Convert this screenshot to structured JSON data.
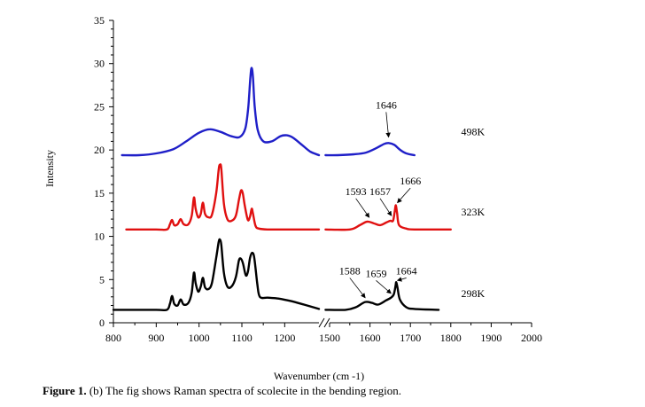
{
  "chart_data": {
    "type": "line",
    "title": "",
    "xlabel": "Wavenumber (cm -1)",
    "ylabel": "Intensity",
    "ylim": [
      0,
      35
    ],
    "yticks": [
      0,
      5,
      10,
      15,
      20,
      25,
      30,
      35
    ],
    "x_segments": [
      {
        "range": [
          800,
          1280
        ],
        "ticks": [
          800,
          900,
          1000,
          1100,
          1200
        ]
      },
      {
        "range": [
          1500,
          2000
        ],
        "ticks": [
          1500,
          1600,
          1700,
          1800,
          1900,
          2000
        ]
      }
    ],
    "axis_break": true,
    "series": [
      {
        "name": "498K",
        "color": "#1f1fc8",
        "segments": [
          [
            [
              820,
              19.4
            ],
            [
              860,
              19.4
            ],
            [
              900,
              19.6
            ],
            [
              940,
              20.1
            ],
            [
              970,
              21.0
            ],
            [
              1000,
              22.0
            ],
            [
              1025,
              22.4
            ],
            [
              1050,
              22.1
            ],
            [
              1075,
              21.6
            ],
            [
              1095,
              21.5
            ],
            [
              1108,
              22.5
            ],
            [
              1115,
              25.0
            ],
            [
              1120,
              28.5
            ],
            [
              1123,
              29.5
            ],
            [
              1126,
              28.3
            ],
            [
              1130,
              25.0
            ],
            [
              1137,
              22.3
            ],
            [
              1150,
              21.0
            ],
            [
              1170,
              21.0
            ],
            [
              1190,
              21.6
            ],
            [
              1205,
              21.7
            ],
            [
              1220,
              21.4
            ],
            [
              1240,
              20.6
            ],
            [
              1260,
              19.8
            ],
            [
              1280,
              19.4
            ]
          ],
          [
            [
              1490,
              19.4
            ],
            [
              1520,
              19.4
            ],
            [
              1560,
              19.5
            ],
            [
              1590,
              19.7
            ],
            [
              1615,
              20.2
            ],
            [
              1635,
              20.7
            ],
            [
              1646,
              20.8
            ],
            [
              1660,
              20.6
            ],
            [
              1675,
              20.0
            ],
            [
              1690,
              19.6
            ],
            [
              1710,
              19.4
            ]
          ]
        ]
      },
      {
        "name": "323K",
        "color": "#e01010",
        "segments": [
          [
            [
              830,
              10.8
            ],
            [
              900,
              10.8
            ],
            [
              925,
              10.8
            ],
            [
              932,
              11.4
            ],
            [
              937,
              11.9
            ],
            [
              942,
              11.3
            ],
            [
              950,
              11.4
            ],
            [
              957,
              12.0
            ],
            [
              964,
              11.4
            ],
            [
              975,
              11.4
            ],
            [
              983,
              12.4
            ],
            [
              988,
              14.5
            ],
            [
              992,
              13.2
            ],
            [
              998,
              12.2
            ],
            [
              1004,
              12.6
            ],
            [
              1009,
              13.9
            ],
            [
              1014,
              12.6
            ],
            [
              1022,
              12.2
            ],
            [
              1030,
              12.5
            ],
            [
              1040,
              15.0
            ],
            [
              1046,
              17.8
            ],
            [
              1049,
              18.3
            ],
            [
              1052,
              17.8
            ],
            [
              1058,
              13.8
            ],
            [
              1066,
              12.0
            ],
            [
              1076,
              11.8
            ],
            [
              1086,
              12.4
            ],
            [
              1093,
              14.2
            ],
            [
              1098,
              15.3
            ],
            [
              1102,
              15.0
            ],
            [
              1107,
              13.5
            ],
            [
              1114,
              11.9
            ],
            [
              1119,
              12.3
            ],
            [
              1123,
              13.2
            ],
            [
              1126,
              12.6
            ],
            [
              1132,
              11.2
            ],
            [
              1140,
              10.9
            ],
            [
              1160,
              10.8
            ],
            [
              1200,
              10.8
            ],
            [
              1280,
              10.8
            ]
          ],
          [
            [
              1490,
              10.8
            ],
            [
              1550,
              10.8
            ],
            [
              1575,
              11.3
            ],
            [
              1593,
              11.7
            ],
            [
              1610,
              11.5
            ],
            [
              1625,
              11.3
            ],
            [
              1640,
              11.6
            ],
            [
              1650,
              11.8
            ],
            [
              1657,
              11.8
            ],
            [
              1661,
              12.8
            ],
            [
              1664,
              13.6
            ],
            [
              1667,
              12.7
            ],
            [
              1672,
              11.3
            ],
            [
              1690,
              10.9
            ],
            [
              1710,
              10.8
            ],
            [
              1800,
              10.8
            ]
          ]
        ]
      },
      {
        "name": "298K",
        "color": "#000000",
        "segments": [
          [
            [
              800,
              1.5
            ],
            [
              900,
              1.5
            ],
            [
              925,
              1.5
            ],
            [
              932,
              2.2
            ],
            [
              937,
              3.1
            ],
            [
              942,
              2.2
            ],
            [
              950,
              2.0
            ],
            [
              957,
              2.7
            ],
            [
              964,
              2.1
            ],
            [
              975,
              2.3
            ],
            [
              983,
              3.5
            ],
            [
              988,
              5.8
            ],
            [
              992,
              4.6
            ],
            [
              998,
              3.6
            ],
            [
              1004,
              4.2
            ],
            [
              1009,
              5.2
            ],
            [
              1014,
              4.1
            ],
            [
              1022,
              3.9
            ],
            [
              1030,
              4.6
            ],
            [
              1040,
              7.5
            ],
            [
              1046,
              9.4
            ],
            [
              1049,
              9.6
            ],
            [
              1052,
              9.0
            ],
            [
              1058,
              5.8
            ],
            [
              1066,
              4.2
            ],
            [
              1076,
              4.2
            ],
            [
              1086,
              5.3
            ],
            [
              1093,
              7.2
            ],
            [
              1098,
              7.4
            ],
            [
              1103,
              6.8
            ],
            [
              1109,
              5.5
            ],
            [
              1114,
              5.9
            ],
            [
              1119,
              7.5
            ],
            [
              1124,
              8.1
            ],
            [
              1129,
              7.5
            ],
            [
              1136,
              4.5
            ],
            [
              1142,
              3.0
            ],
            [
              1160,
              2.9
            ],
            [
              1185,
              2.8
            ],
            [
              1215,
              2.5
            ],
            [
              1245,
              2.1
            ],
            [
              1280,
              1.6
            ]
          ],
          [
            [
              1490,
              1.5
            ],
            [
              1540,
              1.5
            ],
            [
              1565,
              1.8
            ],
            [
              1588,
              2.4
            ],
            [
              1605,
              2.3
            ],
            [
              1620,
              2.1
            ],
            [
              1640,
              2.6
            ],
            [
              1652,
              2.9
            ],
            [
              1659,
              3.3
            ],
            [
              1663,
              4.2
            ],
            [
              1665,
              4.7
            ],
            [
              1668,
              4.1
            ],
            [
              1674,
              2.7
            ],
            [
              1690,
              1.8
            ],
            [
              1710,
              1.6
            ],
            [
              1770,
              1.5
            ]
          ]
        ]
      }
    ],
    "annotations": [
      {
        "text": "1646",
        "x": 1640,
        "y": 24.8,
        "arrow_to": [
          1646,
          21.5
        ]
      },
      {
        "text": "498K",
        "x": 1855,
        "y": 21.7
      },
      {
        "text": "1666",
        "x": 1700,
        "y": 16.0,
        "arrow_to": [
          1668,
          13.9
        ]
      },
      {
        "text": "1593",
        "x": 1565,
        "y": 14.8,
        "arrow_to": [
          1598,
          12.2
        ]
      },
      {
        "text": "1657",
        "x": 1625,
        "y": 14.8,
        "arrow_to": [
          1653,
          12.4
        ]
      },
      {
        "text": "323K",
        "x": 1855,
        "y": 12.4
      },
      {
        "text": "1588",
        "x": 1550,
        "y": 5.6,
        "arrow_to": [
          1588,
          2.9
        ]
      },
      {
        "text": "1659",
        "x": 1615,
        "y": 5.3,
        "arrow_to": [
          1652,
          3.4
        ]
      },
      {
        "text": "1664",
        "x": 1690,
        "y": 5.6,
        "arrow_to": [
          1668,
          4.9
        ]
      },
      {
        "text": "298K",
        "x": 1855,
        "y": 3.0
      }
    ]
  },
  "caption": {
    "label": "Figure 1.",
    "text": " (b) The fig shows Raman spectra of scolecite in the bending region."
  }
}
